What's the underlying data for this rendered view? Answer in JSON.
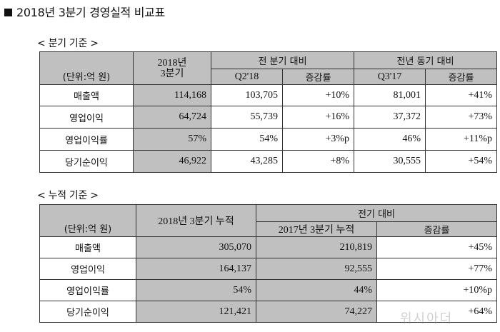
{
  "title": "2018년 3분기 경영실적 비교표",
  "quarterly": {
    "section_label": "< 분기 기준 >",
    "unit": "(단위:억 원)",
    "col_current": "2018년 3분기",
    "col_current_line1": "2018년",
    "col_current_line2": "3분기",
    "group_prev": "전 분기 대비",
    "group_yoy": "전년 동기 대비",
    "sub_prev": "Q2'18",
    "sub_prev_change": "증감률",
    "sub_yoy": "Q3'17",
    "sub_yoy_change": "증감률",
    "rows": [
      {
        "label": "매출액",
        "current": "114,168",
        "prev": "103,705",
        "prev_change": "+10%",
        "yoy": "81,001",
        "yoy_change": "+41%"
      },
      {
        "label": "영업이익",
        "current": "64,724",
        "prev": "55,739",
        "prev_change": "+16%",
        "yoy": "37,372",
        "yoy_change": "+73%"
      },
      {
        "label": "영업이익률",
        "current": "57%",
        "prev": "54%",
        "prev_change": "+3%p",
        "yoy": "46%",
        "yoy_change": "+11%p"
      },
      {
        "label": "당기순이익",
        "current": "46,922",
        "prev": "43,285",
        "prev_change": "+8%",
        "yoy": "30,555",
        "yoy_change": "+54%"
      }
    ]
  },
  "cumulative": {
    "section_label": "< 누적 기준 >",
    "unit": "(단위:억 원)",
    "col_current": "2018년 3분기 누적",
    "group_prev": "전기 대비",
    "sub_prev": "2017년 3분기 누적",
    "sub_change": "증감률",
    "rows": [
      {
        "label": "매출액",
        "current": "305,070",
        "prev": "210,819",
        "change": "+45%"
      },
      {
        "label": "영업이익",
        "current": "164,137",
        "prev": "92,555",
        "change": "+77%"
      },
      {
        "label": "영업이익률",
        "current": "54%",
        "prev": "44%",
        "change": "+10%p"
      },
      {
        "label": "당기순이익",
        "current": "121,421",
        "prev": "74,227",
        "change": "+64%"
      }
    ]
  },
  "watermark": "위시아더"
}
